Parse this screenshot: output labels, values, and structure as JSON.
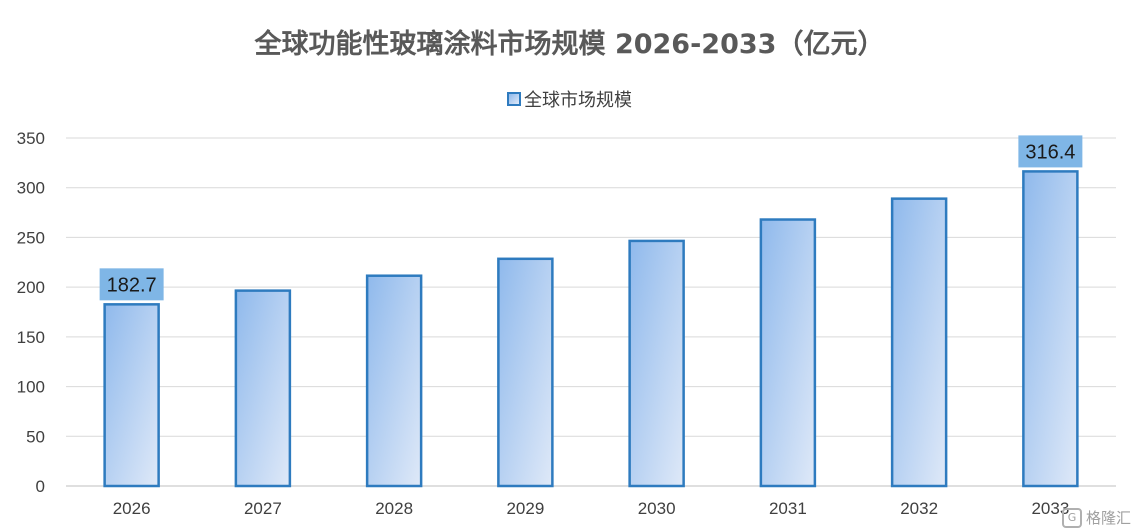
{
  "chart_data": {
    "type": "bar",
    "title": "全球功能性玻璃涂料市场规模 2026-2033（亿元）",
    "categories": [
      "2026",
      "2027",
      "2028",
      "2029",
      "2030",
      "2031",
      "2032",
      "2033"
    ],
    "series": [
      {
        "name": "全球市场规模",
        "values": [
          182.7,
          196.5,
          211.5,
          228.5,
          246.5,
          268.0,
          289.0,
          316.4
        ]
      }
    ],
    "data_labels": [
      {
        "category": "2026",
        "text": "182.7"
      },
      {
        "category": "2033",
        "text": "316.4"
      }
    ],
    "ylim": [
      0,
      350
    ],
    "yticks": [
      0,
      50,
      100,
      150,
      200,
      250,
      300,
      350
    ],
    "grid": true,
    "legend_position": "top-center",
    "colors": {
      "bar_border": "#2e7bbf",
      "bar_fill_start": "#8fb9ec",
      "bar_fill_end": "#dfe9f8",
      "label_bg": "#7fb6e6",
      "grid": "#d9d9d9",
      "axis": "#bfbfbf",
      "title": "#595959",
      "text": "#404040"
    }
  },
  "watermark": {
    "icon": "g-logo-icon",
    "text": "格隆汇"
  }
}
